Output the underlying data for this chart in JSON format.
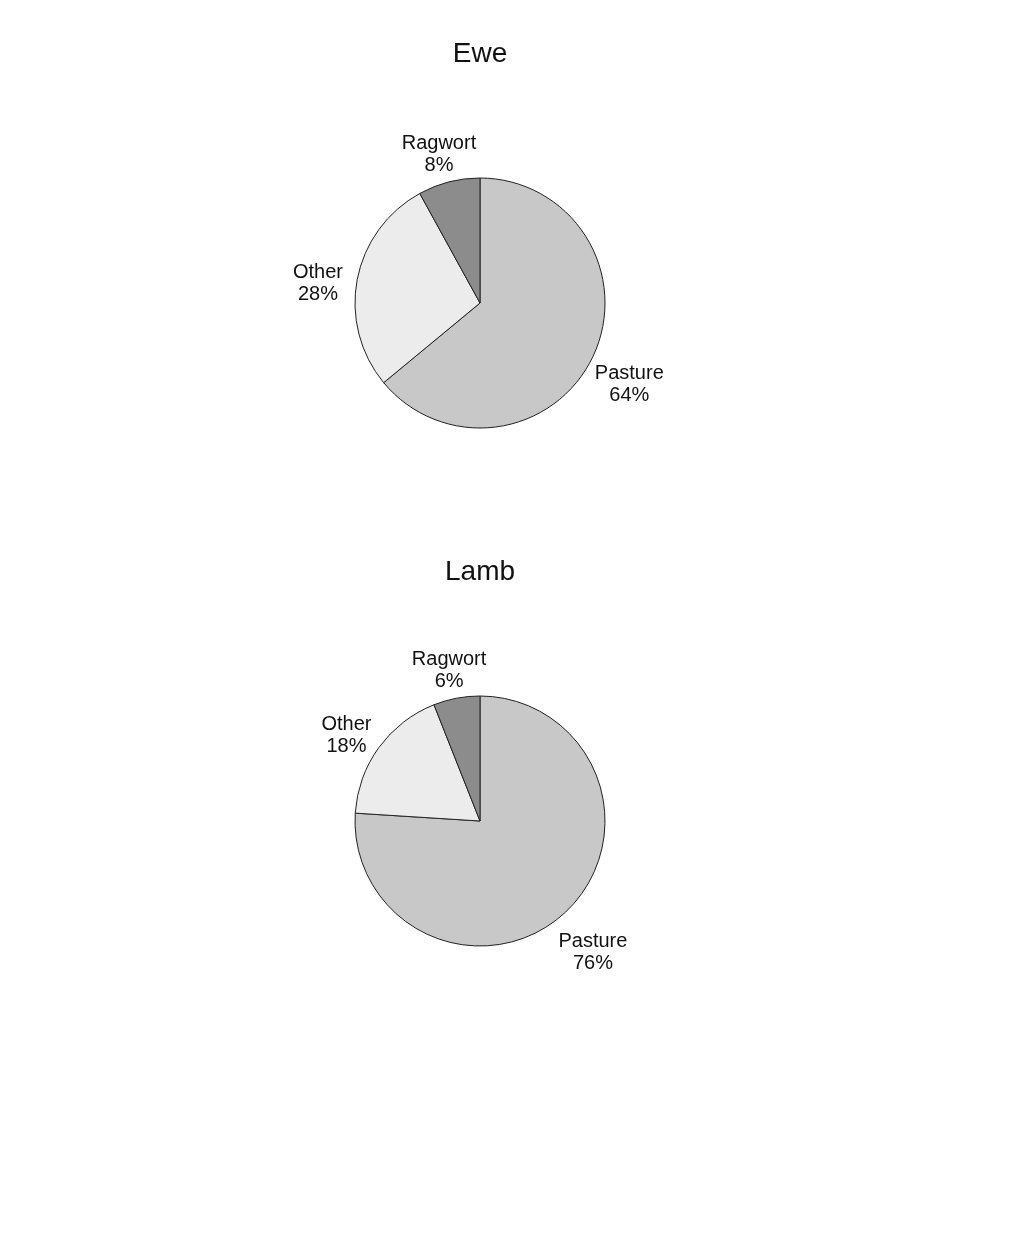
{
  "chart_data": [
    {
      "type": "pie",
      "title": "Ewe",
      "categories": [
        "Pasture",
        "Other",
        "Ragwort"
      ],
      "values": [
        64,
        28,
        8
      ],
      "value_labels": [
        "64%",
        "28%",
        "8%"
      ],
      "colors": [
        "#c8c8c8",
        "#ececec",
        "#8c8c8c"
      ]
    },
    {
      "type": "pie",
      "title": "Lamb",
      "categories": [
        "Pasture",
        "Other",
        "Ragwort"
      ],
      "values": [
        76,
        18,
        6
      ],
      "value_labels": [
        "76%",
        "18%",
        "6%"
      ],
      "colors": [
        "#c8c8c8",
        "#ececec",
        "#8c8c8c"
      ]
    }
  ]
}
